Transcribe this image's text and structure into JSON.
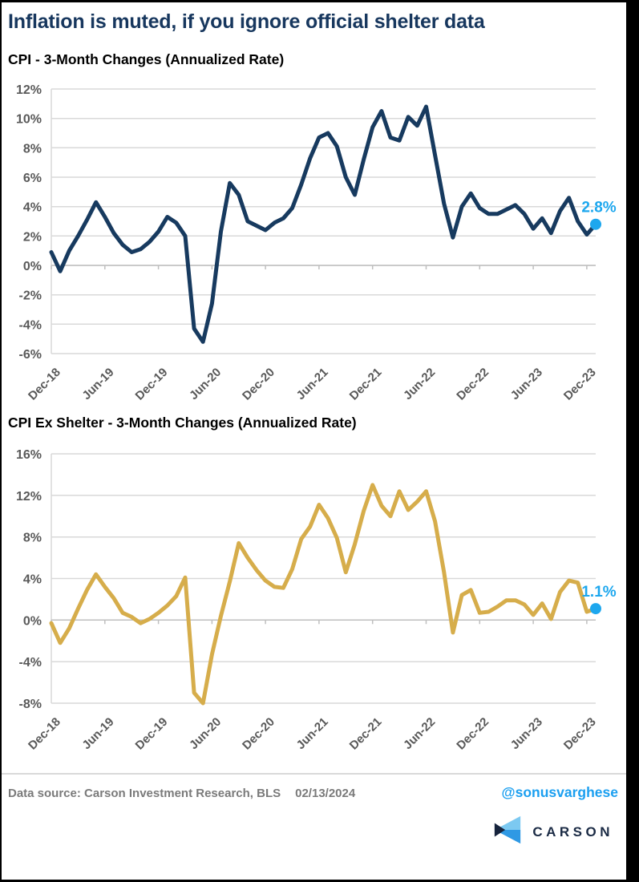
{
  "header": {
    "title": "Inflation is muted, if you ignore official shelter data"
  },
  "colors": {
    "title_navy": "#17375e",
    "navy_line": "#173a5f",
    "gold_line": "#d6ad4b",
    "accent_blue": "#1da7ee",
    "axis_text": "#595959",
    "gridline": "#d9d9d9",
    "axis_line": "#bfbfbf",
    "footer_text": "#7a7a7a",
    "handle_blue": "#1b9ff0",
    "logo_navy": "#1b2b45",
    "logo_light_blue": "#7cc9f1",
    "logo_mid_blue": "#2f99e4",
    "logo_dark_notch": "#16233c"
  },
  "chart_data": [
    {
      "type": "line",
      "title": "CPI - 3-Month Changes (Annualized Rate)",
      "series_name": "CPI 3-month annualized change",
      "unit": "%",
      "ylim": [
        -6,
        12
      ],
      "y_ticks": [
        12,
        10,
        8,
        6,
        4,
        2,
        0,
        -2,
        -4,
        -6
      ],
      "grid": true,
      "legend": false,
      "x_axis_tick_labels": [
        "Dec-18",
        "Jun-19",
        "Dec-19",
        "Jun-20",
        "Dec-20",
        "Jun-21",
        "Dec-21",
        "Jun-22",
        "Dec-22",
        "Jun-23",
        "Dec-23"
      ],
      "x": [
        "Dec-18",
        "Jan-19",
        "Feb-19",
        "Mar-19",
        "Apr-19",
        "May-19",
        "Jun-19",
        "Jul-19",
        "Aug-19",
        "Sep-19",
        "Oct-19",
        "Nov-19",
        "Dec-19",
        "Jan-20",
        "Feb-20",
        "Mar-20",
        "Apr-20",
        "May-20",
        "Jun-20",
        "Jul-20",
        "Aug-20",
        "Sep-20",
        "Oct-20",
        "Nov-20",
        "Dec-20",
        "Jan-21",
        "Feb-21",
        "Mar-21",
        "Apr-21",
        "May-21",
        "Jun-21",
        "Jul-21",
        "Aug-21",
        "Sep-21",
        "Oct-21",
        "Nov-21",
        "Dec-21",
        "Jan-22",
        "Feb-22",
        "Mar-22",
        "Apr-22",
        "May-22",
        "Jun-22",
        "Jul-22",
        "Aug-22",
        "Sep-22",
        "Oct-22",
        "Nov-22",
        "Dec-22",
        "Jan-23",
        "Feb-23",
        "Mar-23",
        "Apr-23",
        "May-23",
        "Jun-23",
        "Jul-23",
        "Aug-23",
        "Sep-23",
        "Oct-23",
        "Nov-23",
        "Dec-23",
        "Jan-24"
      ],
      "values": [
        0.9,
        -0.4,
        1.0,
        2.0,
        3.1,
        4.3,
        3.3,
        2.2,
        1.4,
        0.9,
        1.1,
        1.6,
        2.3,
        3.3,
        2.9,
        2.0,
        -4.3,
        -5.2,
        -2.6,
        2.3,
        5.6,
        4.8,
        3.0,
        2.7,
        2.4,
        2.9,
        3.2,
        3.9,
        5.5,
        7.3,
        8.7,
        9.0,
        8.1,
        6.0,
        4.8,
        7.2,
        9.4,
        10.5,
        8.7,
        8.5,
        10.1,
        9.5,
        10.8,
        7.5,
        4.2,
        1.9,
        4.0,
        4.9,
        3.9,
        3.5,
        3.5,
        3.8,
        4.1,
        3.5,
        2.5,
        3.2,
        2.2,
        3.7,
        4.6,
        3.0,
        2.1,
        2.8
      ],
      "end_label": "2.8%",
      "end_dot_color": "#1da7ee",
      "line_color": "#173a5f"
    },
    {
      "type": "line",
      "title": "CPI Ex Shelter - 3-Month Changes (Annualized Rate)",
      "series_name": "CPI ex shelter 3-month annualized change",
      "unit": "%",
      "ylim": [
        -8,
        16
      ],
      "y_ticks": [
        16,
        12,
        8,
        4,
        0,
        -4,
        -8
      ],
      "grid": true,
      "legend": false,
      "x_axis_tick_labels": [
        "Dec-18",
        "Jun-19",
        "Dec-19",
        "Jun-20",
        "Dec-20",
        "Jun-21",
        "Dec-21",
        "Jun-22",
        "Dec-22",
        "Jun-23",
        "Dec-23"
      ],
      "x": [
        "Dec-18",
        "Jan-19",
        "Feb-19",
        "Mar-19",
        "Apr-19",
        "May-19",
        "Jun-19",
        "Jul-19",
        "Aug-19",
        "Sep-19",
        "Oct-19",
        "Nov-19",
        "Dec-19",
        "Jan-20",
        "Feb-20",
        "Mar-20",
        "Apr-20",
        "May-20",
        "Jun-20",
        "Jul-20",
        "Aug-20",
        "Sep-20",
        "Oct-20",
        "Nov-20",
        "Dec-20",
        "Jan-21",
        "Feb-21",
        "Mar-21",
        "Apr-21",
        "May-21",
        "Jun-21",
        "Jul-21",
        "Aug-21",
        "Sep-21",
        "Oct-21",
        "Nov-21",
        "Dec-21",
        "Jan-22",
        "Feb-22",
        "Mar-22",
        "Apr-22",
        "May-22",
        "Jun-22",
        "Jul-22",
        "Aug-22",
        "Sep-22",
        "Oct-22",
        "Nov-22",
        "Dec-22",
        "Jan-23",
        "Feb-23",
        "Mar-23",
        "Apr-23",
        "May-23",
        "Jun-23",
        "Jul-23",
        "Aug-23",
        "Sep-23",
        "Oct-23",
        "Nov-23",
        "Dec-23",
        "Jan-24"
      ],
      "values": [
        -0.3,
        -2.2,
        -0.8,
        1.1,
        2.9,
        4.4,
        3.2,
        2.1,
        0.7,
        0.3,
        -0.3,
        0.1,
        0.7,
        1.4,
        2.3,
        4.1,
        -7.0,
        -8.0,
        -3.3,
        0.4,
        3.7,
        7.4,
        6.0,
        4.8,
        3.8,
        3.2,
        3.1,
        4.9,
        7.8,
        9.0,
        11.1,
        9.8,
        7.9,
        4.6,
        7.3,
        10.5,
        13.0,
        11.0,
        10.0,
        12.4,
        10.6,
        11.4,
        12.4,
        9.5,
        4.6,
        -1.2,
        2.4,
        2.9,
        0.7,
        0.8,
        1.3,
        1.9,
        1.9,
        1.5,
        0.5,
        1.6,
        0.1,
        2.7,
        3.8,
        3.6,
        0.8,
        1.1
      ],
      "end_label": "1.1%",
      "end_dot_color": "#1da7ee",
      "line_color": "#d6ad4b"
    }
  ],
  "footer": {
    "source": "Data source: Carson Investment Research, BLS",
    "date": "02/13/2024",
    "handle": "@sonusvarghese",
    "logo_text": "CARSON",
    "logo_icon": "carson-chevron-icon"
  }
}
